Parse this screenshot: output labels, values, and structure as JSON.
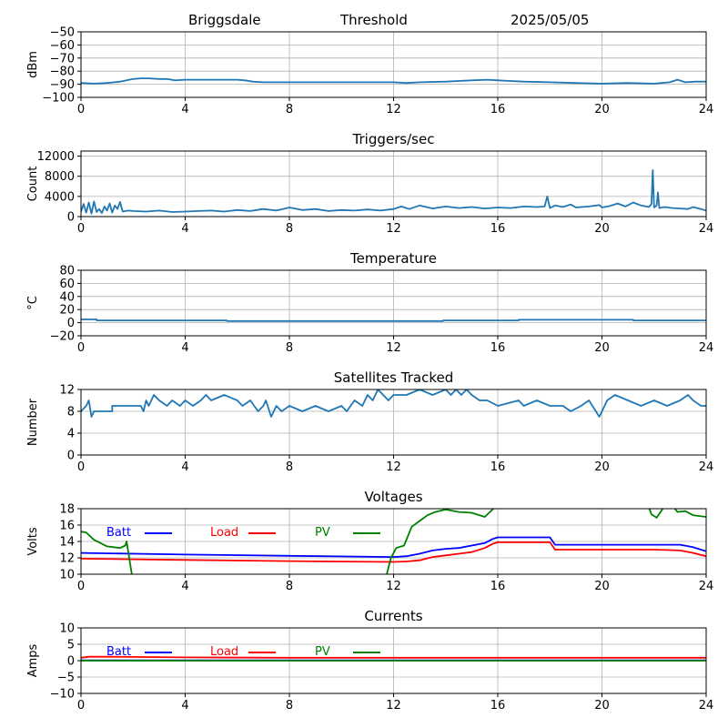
{
  "header": {
    "station": "Briggsdale",
    "label": "Threshold",
    "date": "2025/05/05"
  },
  "colors": {
    "series": "#1f77b4",
    "batt": "#0000ff",
    "load": "#ff0000",
    "pv": "#008000",
    "grid": "#b0b0b0",
    "axis": "#000000"
  },
  "chart_data": [
    {
      "type": "line",
      "title": "",
      "xlabel": "",
      "ylabel": "dBm",
      "xlim": [
        0,
        24
      ],
      "ylim": [
        -100,
        -50
      ],
      "xticks": [
        0,
        4,
        8,
        12,
        16,
        20,
        24
      ],
      "yticks": [
        -100,
        -90,
        -80,
        -70,
        -60,
        -50
      ],
      "grid": true,
      "series": [
        {
          "color": "series",
          "x": [
            0,
            0.5,
            1,
            1.5,
            2,
            2.3,
            2.6,
            3,
            3.3,
            3.6,
            4,
            4.5,
            5,
            5.5,
            6,
            6.3,
            6.6,
            7,
            8,
            9,
            10,
            11,
            12,
            12.5,
            13,
            14,
            15,
            15.6,
            16,
            16.5,
            17,
            18,
            19,
            20,
            21,
            22,
            22.6,
            22.9,
            23.2,
            23.6,
            24
          ],
          "y": [
            -89,
            -89.5,
            -89,
            -88,
            -86,
            -85.5,
            -85.5,
            -86,
            -86,
            -87,
            -86.5,
            -86.5,
            -86.5,
            -86.5,
            -86.5,
            -87,
            -88,
            -88.5,
            -88.5,
            -88.5,
            -88.5,
            -88.5,
            -88.5,
            -89,
            -88.5,
            -88,
            -87,
            -86.5,
            -87,
            -87.5,
            -88,
            -88.5,
            -89,
            -89.5,
            -89,
            -89.5,
            -88.5,
            -86.5,
            -88.5,
            -88,
            -88
          ]
        }
      ]
    },
    {
      "type": "line",
      "title": "Triggers/sec",
      "xlabel": "",
      "ylabel": "Count",
      "xlim": [
        0,
        24
      ],
      "ylim": [
        0,
        13000
      ],
      "xticks": [
        0,
        4,
        8,
        12,
        16,
        20,
        24
      ],
      "yticks": [
        0,
        4000,
        8000,
        12000
      ],
      "grid": true,
      "series": [
        {
          "color": "series",
          "x": [
            0,
            0.1,
            0.2,
            0.3,
            0.4,
            0.5,
            0.6,
            0.7,
            0.8,
            0.9,
            1,
            1.1,
            1.2,
            1.3,
            1.4,
            1.5,
            1.6,
            1.8,
            2,
            2.5,
            3,
            3.5,
            4,
            4.5,
            5,
            5.5,
            6,
            6.5,
            7,
            7.5,
            8,
            8.5,
            9,
            9.5,
            10,
            10.5,
            11,
            11.5,
            12,
            12.3,
            12.6,
            13,
            13.5,
            14,
            14.5,
            15,
            15.5,
            16,
            16.5,
            17,
            17.5,
            17.8,
            17.9,
            18,
            18.2,
            18.5,
            18.8,
            19,
            19.5,
            19.9,
            20,
            20.3,
            20.6,
            20.9,
            21.2,
            21.5,
            21.8,
            21.9,
            21.95,
            22,
            22.1,
            22.15,
            22.2,
            22.4,
            22.7,
            23,
            23.3,
            23.5,
            23.8,
            24
          ],
          "y": [
            1000,
            2500,
            800,
            2800,
            600,
            3000,
            900,
            1500,
            700,
            2000,
            1200,
            2600,
            800,
            2200,
            1500,
            2900,
            1000,
            1200,
            1100,
            1000,
            1200,
            900,
            1000,
            1100,
            1200,
            1000,
            1300,
            1100,
            1500,
            1200,
            1800,
            1300,
            1500,
            1100,
            1300,
            1200,
            1400,
            1200,
            1500,
            2000,
            1500,
            2200,
            1600,
            2000,
            1700,
            1900,
            1600,
            1800,
            1700,
            2000,
            1900,
            2000,
            4000,
            1700,
            2200,
            1900,
            2400,
            1800,
            2000,
            2300,
            1800,
            2100,
            2600,
            2000,
            2800,
            2200,
            1900,
            2500,
            9200,
            1800,
            2200,
            4800,
            1700,
            1900,
            1700,
            1600,
            1500,
            1900,
            1500,
            1200
          ]
        }
      ]
    },
    {
      "type": "line",
      "title": "Temperature",
      "xlabel": "",
      "ylabel": "°C",
      "xlim": [
        0,
        24
      ],
      "ylim": [
        -20,
        80
      ],
      "xticks": [
        0,
        4,
        8,
        12,
        16,
        20,
        24
      ],
      "yticks": [
        -20,
        0,
        20,
        40,
        60,
        80
      ],
      "grid": true,
      "series": [
        {
          "color": "series",
          "x": [
            0,
            0.6,
            0.6,
            5.6,
            5.6,
            13.9,
            13.9,
            16.8,
            16.8,
            21.2,
            21.2,
            24
          ],
          "y": [
            5,
            5,
            3.5,
            3.5,
            2.5,
            2.5,
            3.5,
            3.5,
            4.5,
            4.5,
            3.5,
            3.5
          ]
        }
      ]
    },
    {
      "type": "line",
      "title": "Satellites Tracked",
      "xlabel": "",
      "ylabel": "Number",
      "xlim": [
        0,
        24
      ],
      "ylim": [
        0,
        12
      ],
      "xticks": [
        0,
        4,
        8,
        12,
        16,
        20,
        24
      ],
      "yticks": [
        0,
        4,
        8,
        12
      ],
      "grid": true,
      "series": [
        {
          "color": "series",
          "x": [
            0,
            0.2,
            0.3,
            0.4,
            0.5,
            1.2,
            1.2,
            2.3,
            2.4,
            2.5,
            2.6,
            2.8,
            3,
            3.3,
            3.5,
            3.8,
            4,
            4.3,
            4.6,
            4.8,
            5,
            5.5,
            6,
            6.2,
            6.5,
            6.8,
            7,
            7.1,
            7.3,
            7.5,
            7.7,
            8,
            8.5,
            9,
            9.5,
            10,
            10.2,
            10.5,
            10.8,
            11,
            11.2,
            11.4,
            11.6,
            11.8,
            12,
            12.5,
            13,
            13.5,
            14,
            14.2,
            14.4,
            14.6,
            14.8,
            15,
            15.3,
            15.6,
            16,
            16.8,
            17,
            17.5,
            18,
            18.5,
            18.8,
            19.2,
            19.5,
            19.9,
            20,
            20.2,
            20.5,
            21,
            21.5,
            22,
            22.5,
            23,
            23.3,
            23.5,
            23.8,
            24
          ],
          "y": [
            8,
            9,
            10,
            7,
            8,
            8,
            9,
            9,
            8,
            10,
            9,
            11,
            10,
            9,
            10,
            9,
            10,
            9,
            10,
            11,
            10,
            11,
            10,
            9,
            10,
            8,
            9,
            10,
            7,
            9,
            8,
            9,
            8,
            9,
            8,
            9,
            8,
            10,
            9,
            11,
            10,
            12,
            11,
            10,
            11,
            11,
            12,
            11,
            12,
            11,
            12,
            11,
            12,
            11,
            10,
            10,
            9,
            10,
            9,
            10,
            9,
            9,
            8,
            9,
            10,
            7,
            8,
            10,
            11,
            10,
            9,
            10,
            9,
            10,
            11,
            10,
            9,
            9
          ]
        }
      ]
    },
    {
      "type": "line",
      "title": "Voltages",
      "xlabel": "",
      "ylabel": "Volts",
      "xlim": [
        0,
        24
      ],
      "ylim": [
        10,
        18
      ],
      "xticks": [
        0,
        4,
        8,
        12,
        16,
        20,
        24
      ],
      "yticks": [
        10,
        12,
        14,
        16,
        18
      ],
      "grid": true,
      "legend": "top-left inline",
      "series": [
        {
          "name": "Batt",
          "color": "batt",
          "x": [
            0,
            4,
            8,
            12,
            12.5,
            13,
            13.5,
            14,
            14.5,
            15,
            15.5,
            15.8,
            16,
            16.5,
            17,
            18,
            18.2,
            18.5,
            20,
            21.5,
            22,
            23,
            23.5,
            24
          ],
          "y": [
            12.6,
            12.4,
            12.25,
            12.1,
            12.2,
            12.5,
            12.9,
            13.1,
            13.2,
            13.5,
            13.8,
            14.3,
            14.5,
            14.5,
            14.5,
            14.5,
            13.6,
            13.6,
            13.6,
            13.6,
            13.6,
            13.6,
            13.3,
            12.8
          ]
        },
        {
          "name": "Load",
          "color": "load",
          "x": [
            0,
            4,
            8,
            12,
            12.5,
            13,
            13.5,
            14,
            14.5,
            15,
            15.5,
            15.8,
            16,
            17,
            18,
            18.2,
            20,
            21.5,
            22,
            23,
            23.5,
            24
          ],
          "y": [
            11.9,
            11.75,
            11.6,
            11.5,
            11.55,
            11.7,
            12.1,
            12.3,
            12.5,
            12.7,
            13.2,
            13.7,
            13.9,
            13.9,
            13.9,
            13.0,
            13.0,
            13.0,
            13.0,
            12.9,
            12.6,
            12.2
          ]
        },
        {
          "name": "PV",
          "color": "pv",
          "x": [
            0,
            0.2,
            0.5,
            1,
            1.5,
            1.7,
            1.75,
            1.9,
            2.0,
            null,
            11.7,
            11.9,
            12.1,
            12.4,
            12.7,
            13,
            13.3,
            13.6,
            14,
            14.5,
            15,
            15.5,
            16,
            16.3,
            null,
            21.7,
            21.9,
            22.1,
            22.4,
            22.6,
            22.9,
            23.2,
            23.5,
            24
          ],
          "y": [
            15.2,
            15.1,
            14.2,
            13.4,
            13.2,
            13.5,
            14.0,
            11.0,
            9.0,
            null,
            9.5,
            12.0,
            13.2,
            13.5,
            15.8,
            16.5,
            17.2,
            17.6,
            17.9,
            17.6,
            17.5,
            17.0,
            18.5,
            19.5,
            null,
            19.0,
            17.3,
            16.9,
            18.3,
            18.8,
            17.6,
            17.7,
            17.2,
            17.0
          ]
        }
      ]
    },
    {
      "type": "line",
      "title": "Currents",
      "xlabel": "",
      "ylabel": "Amps",
      "xlim": [
        0,
        24
      ],
      "ylim": [
        -10,
        10
      ],
      "xticks": [
        0,
        4,
        8,
        12,
        16,
        20,
        24
      ],
      "yticks": [
        -10,
        -5,
        0,
        5,
        10
      ],
      "grid": true,
      "legend": "top-left inline",
      "series": [
        {
          "name": "Batt",
          "color": "batt",
          "x": [
            0,
            24
          ],
          "y": [
            0.1,
            0.1
          ]
        },
        {
          "name": "Load",
          "color": "load",
          "x": [
            0,
            0.3,
            1,
            4,
            8,
            12,
            16,
            20,
            24
          ],
          "y": [
            0.9,
            1.2,
            1.2,
            1.0,
            0.9,
            0.9,
            0.9,
            0.9,
            0.9
          ]
        },
        {
          "name": "PV",
          "color": "pv",
          "x": [
            0,
            24
          ],
          "y": [
            0.0,
            0.0
          ]
        }
      ]
    }
  ]
}
